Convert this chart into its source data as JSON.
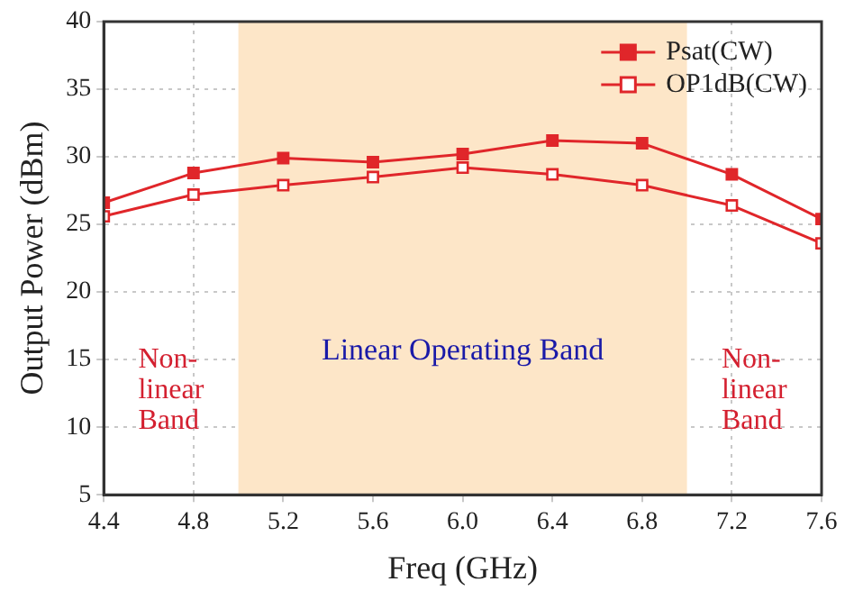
{
  "chart_data": {
    "type": "line",
    "xlabel": "Freq (GHz)",
    "ylabel": "Output Power (dBm)",
    "x": [
      4.4,
      4.8,
      5.2,
      5.6,
      6.0,
      6.4,
      6.8,
      7.2,
      7.6
    ],
    "series": [
      {
        "name": "Psat(CW)",
        "color": "#e0262a",
        "values": [
          26.6,
          28.8,
          29.9,
          29.6,
          30.2,
          31.2,
          31.0,
          28.7,
          25.4
        ]
      },
      {
        "name": "OP1dB(CW)",
        "color": "#e0262a",
        "values": [
          25.6,
          27.2,
          27.9,
          28.5,
          29.2,
          28.7,
          27.9,
          26.4,
          23.6
        ]
      }
    ],
    "xlim": [
      4.4,
      7.6
    ],
    "xticks": [
      4.4,
      4.8,
      5.2,
      5.6,
      {
        "value": 6,
        "label": "6.0"
      },
      6.4,
      6.8,
      7.2,
      7.6
    ],
    "ylim": [
      5,
      40
    ],
    "yticks": [
      5,
      10,
      15,
      20,
      25,
      30,
      35,
      40
    ],
    "bands": [
      {
        "axis": "x",
        "from": 5.0,
        "to": 7.0,
        "label": "Linear Operating Band",
        "color": "#fde6c8"
      }
    ],
    "annotations": [
      "Non-linear Band",
      "Non-linear Band"
    ],
    "grid": true,
    "legend": "top right",
    "marker": "square",
    "line_style": "solid"
  }
}
